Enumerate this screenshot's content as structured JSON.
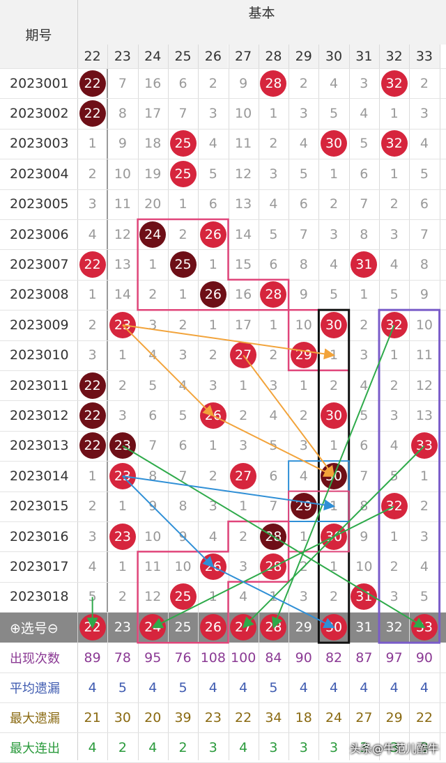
{
  "header": {
    "period_label": "期号",
    "group_label": "基本",
    "columns": [
      "22",
      "23",
      "24",
      "25",
      "26",
      "27",
      "28",
      "29",
      "30",
      "31",
      "32",
      "33"
    ]
  },
  "rows": [
    {
      "id": "2023001",
      "cells": [
        {
          "v": "22",
          "b": "dark"
        },
        "7",
        "16",
        "6",
        "2",
        "9",
        {
          "v": "28",
          "b": "red"
        },
        "2",
        "4",
        "3",
        {
          "v": "32",
          "b": "red"
        },
        "2"
      ]
    },
    {
      "id": "2023002",
      "cells": [
        {
          "v": "22",
          "b": "dark"
        },
        "8",
        "17",
        "7",
        "3",
        "10",
        "1",
        "3",
        "5",
        "4",
        "1",
        "3"
      ]
    },
    {
      "id": "2023003",
      "cells": [
        "1",
        "9",
        "18",
        {
          "v": "25",
          "b": "red"
        },
        "4",
        "11",
        "2",
        "4",
        {
          "v": "30",
          "b": "red"
        },
        "5",
        {
          "v": "32",
          "b": "red"
        },
        "4"
      ]
    },
    {
      "id": "2023004",
      "cells": [
        "2",
        "10",
        "19",
        {
          "v": "25",
          "b": "red"
        },
        "5",
        "12",
        "3",
        "5",
        "1",
        "6",
        "1",
        "5"
      ]
    },
    {
      "id": "2023005",
      "cells": [
        "3",
        "11",
        "20",
        "1",
        "6",
        "13",
        "4",
        "6",
        "2",
        "7",
        "2",
        "6"
      ]
    },
    {
      "id": "2023006",
      "cells": [
        "4",
        "12",
        {
          "v": "24",
          "b": "dark"
        },
        "2",
        {
          "v": "26",
          "b": "red"
        },
        "14",
        "5",
        "7",
        "3",
        "8",
        "3",
        "7"
      ]
    },
    {
      "id": "2023007",
      "cells": [
        {
          "v": "22",
          "b": "red"
        },
        "13",
        "1",
        {
          "v": "25",
          "b": "dark"
        },
        "1",
        "15",
        "6",
        "8",
        "4",
        {
          "v": "31",
          "b": "red"
        },
        "4",
        "8"
      ]
    },
    {
      "id": "2023008",
      "cells": [
        "1",
        "14",
        "2",
        "1",
        {
          "v": "26",
          "b": "dark"
        },
        "16",
        {
          "v": "28",
          "b": "red"
        },
        "9",
        "5",
        "1",
        "5",
        "9"
      ]
    },
    {
      "id": "2023009",
      "cells": [
        "2",
        {
          "v": "23",
          "b": "red"
        },
        "3",
        "2",
        "1",
        "17",
        "1",
        "10",
        {
          "v": "30",
          "b": "red"
        },
        "2",
        {
          "v": "32",
          "b": "red"
        },
        "10"
      ]
    },
    {
      "id": "2023010",
      "cells": [
        "3",
        "1",
        "4",
        "3",
        "2",
        {
          "v": "27",
          "b": "red"
        },
        "2",
        {
          "v": "29",
          "b": "red"
        },
        "1",
        "3",
        "1",
        "11"
      ]
    },
    {
      "id": "2023011",
      "cells": [
        {
          "v": "22",
          "b": "dark"
        },
        "2",
        "5",
        "4",
        "3",
        "1",
        "3",
        "1",
        "2",
        "4",
        "2",
        "12"
      ]
    },
    {
      "id": "2023012",
      "cells": [
        {
          "v": "22",
          "b": "dark"
        },
        "3",
        "6",
        "5",
        {
          "v": "26",
          "b": "red"
        },
        "2",
        "4",
        "2",
        {
          "v": "30",
          "b": "red"
        },
        "5",
        "3",
        "13"
      ]
    },
    {
      "id": "2023013",
      "cells": [
        {
          "v": "22",
          "b": "dark"
        },
        {
          "v": "23",
          "b": "dark"
        },
        "7",
        "6",
        "1",
        "3",
        "5",
        "3",
        "1",
        "6",
        "4",
        {
          "v": "33",
          "b": "red"
        }
      ]
    },
    {
      "id": "2023014",
      "cells": [
        "1",
        {
          "v": "23",
          "b": "red"
        },
        "8",
        "7",
        "2",
        {
          "v": "27",
          "b": "red"
        },
        "6",
        "4",
        {
          "v": "30",
          "b": "dark"
        },
        "7",
        "5",
        "1"
      ]
    },
    {
      "id": "2023015",
      "cells": [
        "2",
        "1",
        "9",
        "8",
        "3",
        "1",
        "7",
        {
          "v": "29",
          "b": "dark"
        },
        "1",
        "8",
        {
          "v": "32",
          "b": "red"
        },
        "2"
      ]
    },
    {
      "id": "2023016",
      "cells": [
        "3",
        {
          "v": "23",
          "b": "red"
        },
        "10",
        "9",
        "4",
        "2",
        {
          "v": "28",
          "b": "dark"
        },
        "1",
        {
          "v": "30",
          "b": "red"
        },
        "9",
        "1",
        "3"
      ]
    },
    {
      "id": "2023017",
      "cells": [
        "4",
        "1",
        "11",
        "10",
        {
          "v": "26",
          "b": "red"
        },
        "3",
        {
          "v": "28",
          "b": "red"
        },
        "2",
        "1",
        "10",
        "2",
        "4"
      ]
    },
    {
      "id": "2023018",
      "cells": [
        "5",
        "2",
        "12",
        {
          "v": "25",
          "b": "red"
        },
        "1",
        "4",
        "1",
        "3",
        "2",
        {
          "v": "31",
          "b": "red"
        },
        "3",
        "5"
      ]
    }
  ],
  "selector": {
    "label": "⊕选号⊖",
    "cells": [
      {
        "v": "22",
        "b": "red"
      },
      "23",
      {
        "v": "24",
        "b": "red"
      },
      "25",
      {
        "v": "26",
        "b": "red"
      },
      {
        "v": "27",
        "b": "red"
      },
      {
        "v": "28",
        "b": "red"
      },
      "29",
      {
        "v": "30",
        "b": "red"
      },
      "31",
      "32",
      {
        "v": "33",
        "b": "red"
      }
    ]
  },
  "stats": [
    {
      "label": "出现次数",
      "color": "#8b3a94",
      "values": [
        "89",
        "78",
        "95",
        "76",
        "108",
        "100",
        "84",
        "90",
        "82",
        "87",
        "97",
        "90"
      ]
    },
    {
      "label": "平均遗漏",
      "color": "#3f5bb0",
      "values": [
        "4",
        "5",
        "4",
        "5",
        "4",
        "4",
        "5",
        "4",
        "4",
        "4",
        "4",
        "4"
      ]
    },
    {
      "label": "最大遗漏",
      "color": "#8a6a12",
      "values": [
        "21",
        "30",
        "20",
        "39",
        "23",
        "22",
        "34",
        "18",
        "24",
        "27",
        "29",
        "22"
      ]
    },
    {
      "label": "最大连出",
      "color": "#2a9a3c",
      "values": [
        "4",
        "2",
        "4",
        "2",
        "3",
        "4",
        "3",
        "3",
        "3",
        "3",
        "3",
        "3"
      ]
    }
  ],
  "watermark": "头条@牛范儿酷牛",
  "colors": {
    "ball_red": "#d6253d",
    "ball_dark": "#6e0f17",
    "header_bg": "#f2f2f2",
    "selector_bg": "#888888",
    "pink_box": "#e0457a",
    "black_box": "#111111",
    "purple_box": "#7a5cc9",
    "blue_box": "#2f8fd6",
    "arrow_orange": "#f2a33a",
    "arrow_green": "#2eaa4a",
    "arrow_blue": "#2f8fd6"
  }
}
